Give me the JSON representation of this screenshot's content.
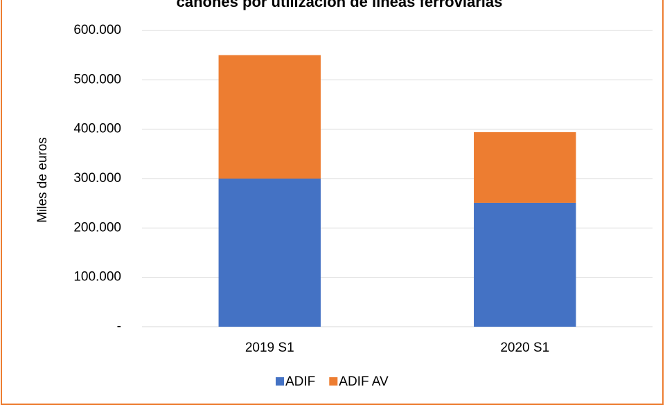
{
  "chart_data": {
    "type": "stacked_bar",
    "title": "cánones por utilización de líneas ferroviarias",
    "y_label": "Miles de euros",
    "categories": [
      "2019 S1",
      "2020 S1"
    ],
    "series": [
      {
        "name": "ADIF",
        "color": "#4472c4",
        "values": [
          300000,
          251000
        ]
      },
      {
        "name": "ADIF AV",
        "color": "#ed7d31",
        "values": [
          250000,
          143000
        ]
      }
    ],
    "ylim": [
      0,
      600000
    ],
    "yticks": [
      {
        "value": 0,
        "label": "-"
      },
      {
        "value": 100000,
        "label": "100.000"
      },
      {
        "value": 200000,
        "label": "200.000"
      },
      {
        "value": 300000,
        "label": "300.000"
      },
      {
        "value": 400000,
        "label": "400.000"
      },
      {
        "value": 500000,
        "label": "500.000"
      },
      {
        "value": 600000,
        "label": "600.000"
      }
    ],
    "grid": true,
    "legend": "bottom"
  }
}
